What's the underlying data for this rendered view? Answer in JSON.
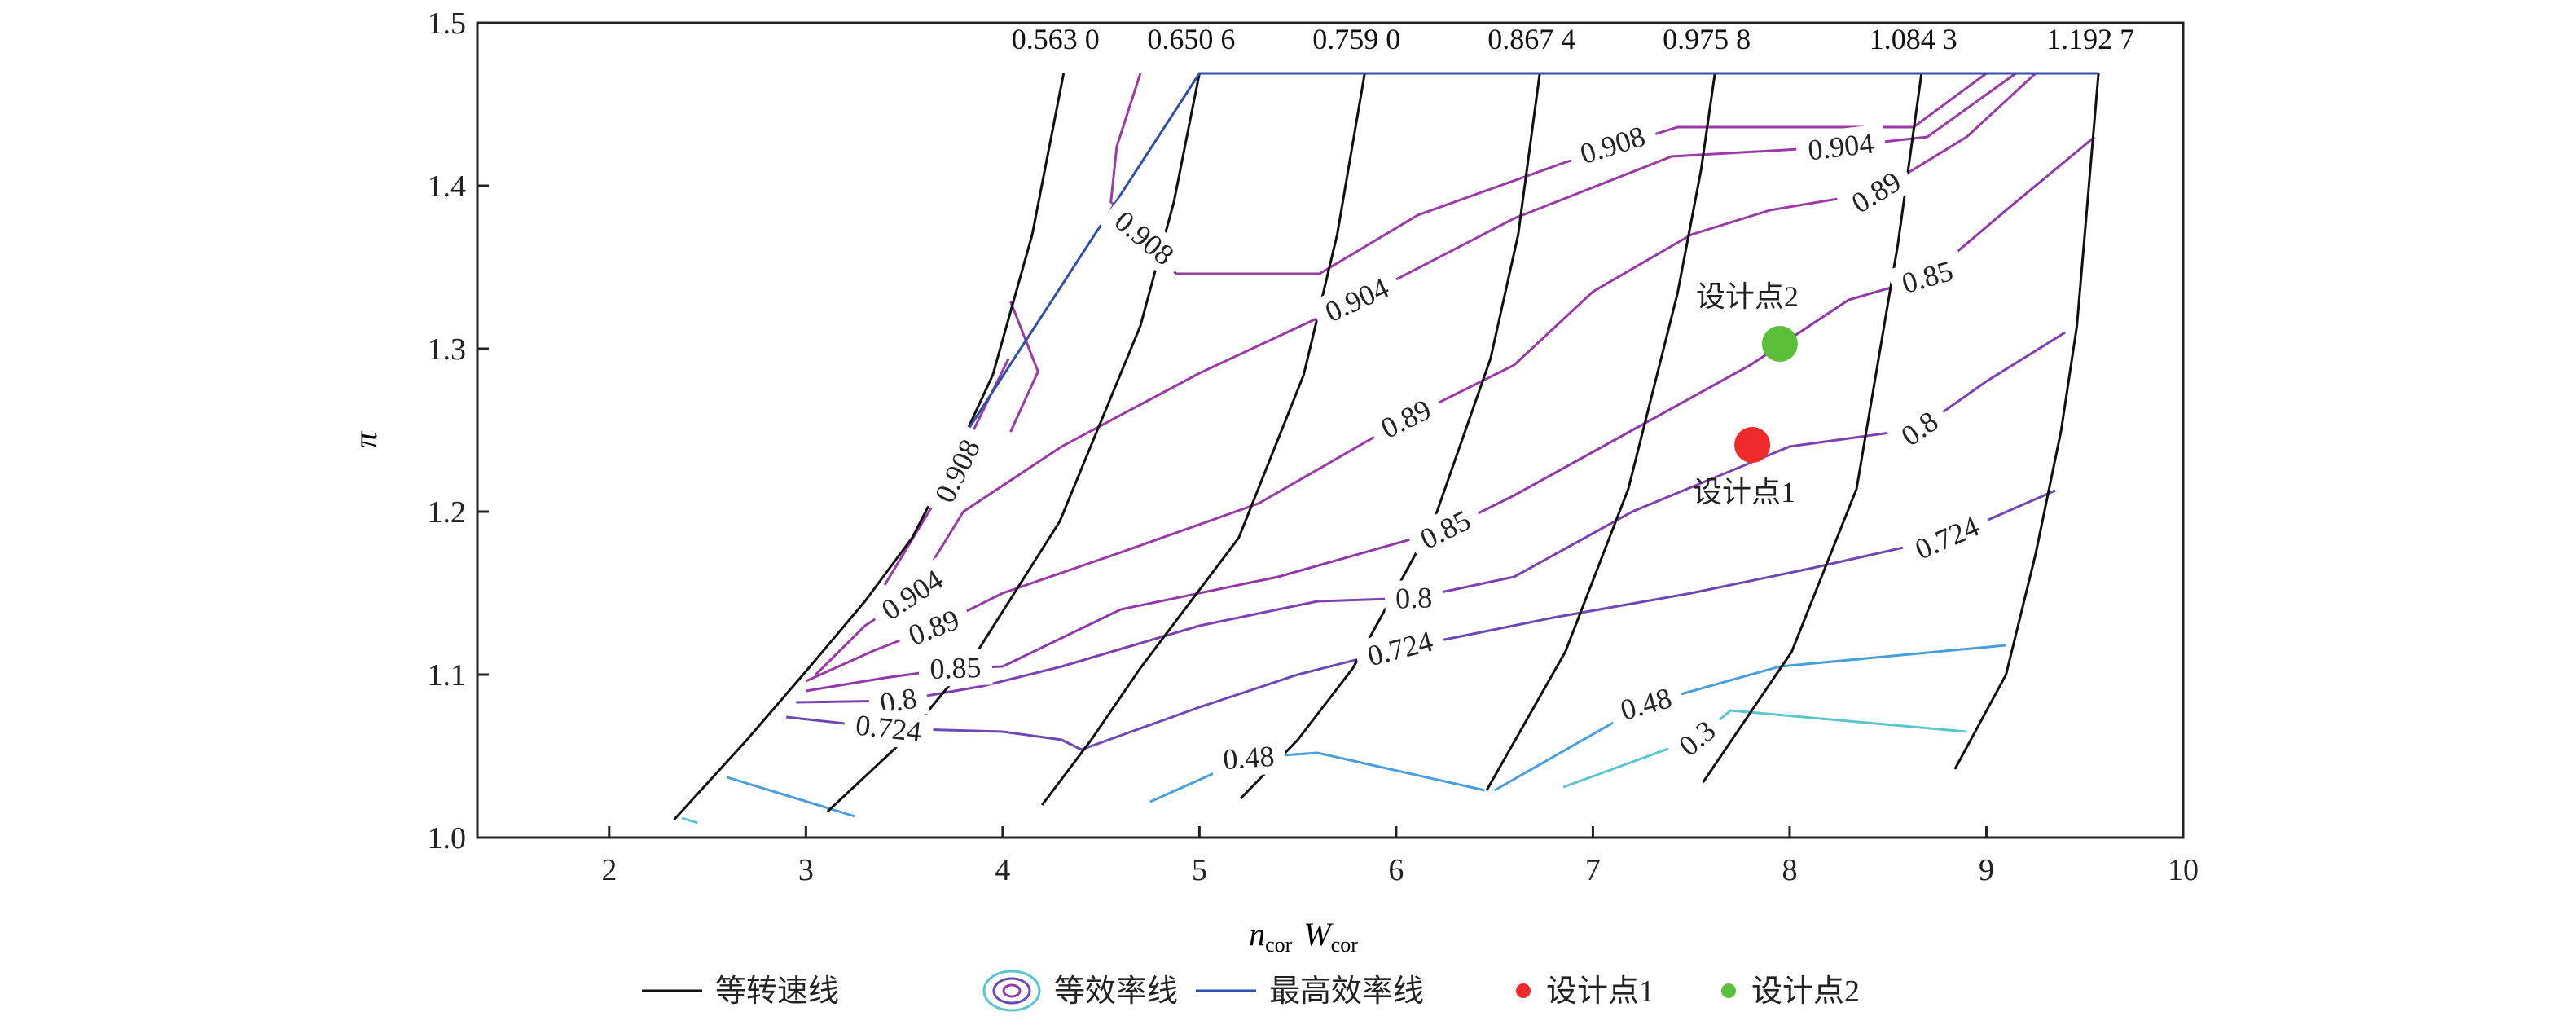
{
  "chart_data": {
    "type": "line",
    "title": "",
    "xlabel": "n_cor W_cor",
    "xlabel_main": [
      "n",
      "W"
    ],
    "xlabel_sub": "cor",
    "ylabel": "π",
    "xlim": [
      1.33,
      10
    ],
    "ylim": [
      1.0,
      1.5
    ],
    "xticks": [
      2,
      3,
      4,
      5,
      6,
      7,
      8,
      9,
      10
    ],
    "yticks": [
      "1.0",
      "1.1",
      "1.2",
      "1.3",
      "1.4",
      "1.5"
    ],
    "grid": false,
    "legend_placement": "bottom",
    "legend": [
      "等转速线",
      "等效率线",
      "最高效率线",
      "设计点1",
      "设计点2"
    ],
    "colors": {
      "speed": "#111111",
      "max_eff": "#2f4fa8",
      "design1": "#ee2a2a",
      "design2": "#5cbf3a"
    },
    "speed_lines": [
      {
        "label": "0.563 0",
        "points": [
          [
            2.33,
            1.011
          ],
          [
            2.7,
            1.06
          ],
          [
            3.0,
            1.102
          ],
          [
            3.3,
            1.145
          ],
          [
            3.54,
            1.184
          ],
          [
            3.8,
            1.245
          ],
          [
            3.95,
            1.284
          ],
          [
            4.15,
            1.37
          ],
          [
            4.31,
            1.469
          ]
        ]
      },
      {
        "label": "0.650 6",
        "points": [
          [
            3.11,
            1.016
          ],
          [
            3.5,
            1.06
          ],
          [
            3.87,
            1.114
          ],
          [
            4.29,
            1.194
          ],
          [
            4.7,
            1.314
          ],
          [
            4.87,
            1.39
          ],
          [
            5.0,
            1.469
          ]
        ]
      },
      {
        "label": "0.759 0",
        "points": [
          [
            4.2,
            1.02
          ],
          [
            4.45,
            1.06
          ],
          [
            4.7,
            1.104
          ],
          [
            5.2,
            1.184
          ],
          [
            5.53,
            1.284
          ],
          [
            5.7,
            1.37
          ],
          [
            5.84,
            1.469
          ]
        ]
      },
      {
        "label": "0.867 4",
        "points": [
          [
            5.21,
            1.024
          ],
          [
            5.5,
            1.06
          ],
          [
            5.78,
            1.104
          ],
          [
            6.19,
            1.194
          ],
          [
            6.48,
            1.294
          ],
          [
            6.62,
            1.37
          ],
          [
            6.73,
            1.469
          ]
        ]
      },
      {
        "label": "0.975 8",
        "points": [
          [
            6.46,
            1.029
          ],
          [
            6.86,
            1.114
          ],
          [
            7.18,
            1.214
          ],
          [
            7.43,
            1.334
          ],
          [
            7.55,
            1.41
          ],
          [
            7.62,
            1.469
          ]
        ]
      },
      {
        "label": "1.084 3",
        "points": [
          [
            7.56,
            1.034
          ],
          [
            8.01,
            1.114
          ],
          [
            8.34,
            1.214
          ],
          [
            8.55,
            1.364
          ],
          [
            8.67,
            1.469
          ]
        ]
      },
      {
        "label": "1.192 7",
        "points": [
          [
            8.84,
            1.042
          ],
          [
            9.1,
            1.1
          ],
          [
            9.25,
            1.174
          ],
          [
            9.38,
            1.25
          ],
          [
            9.46,
            1.314
          ],
          [
            9.57,
            1.469
          ]
        ]
      }
    ],
    "max_efficiency_line": [
      [
        3.79,
        1.244
      ],
      [
        5.0,
        1.469
      ],
      [
        9.57,
        1.469
      ]
    ],
    "efficiency_contours": [
      {
        "level": "0.908",
        "color": "#9a3aa6",
        "segments": [
          [
            [
              3.4,
              1.155
            ],
            [
              3.75,
              1.225
            ],
            [
              4.03,
              1.294
            ]
          ],
          [
            [
              4.04,
              1.329
            ],
            [
              4.18,
              1.286
            ],
            [
              4.04,
              1.249
            ]
          ],
          [
            [
              4.7,
              1.469
            ],
            [
              4.58,
              1.424
            ],
            [
              4.55,
              1.39
            ],
            [
              4.75,
              1.37
            ],
            [
              4.88,
              1.346
            ],
            [
              5.61,
              1.346
            ],
            [
              6.11,
              1.382
            ],
            [
              6.85,
              1.414
            ],
            [
              7.43,
              1.436
            ],
            [
              8.63,
              1.436
            ],
            [
              9.0,
              1.469
            ]
          ]
        ],
        "labels": [
          [
            3.77,
            1.225
          ],
          [
            4.72,
            1.368
          ],
          [
            7.1,
            1.425
          ]
        ]
      },
      {
        "level": "0.904",
        "color": "#9a3aa6",
        "segments": [
          [
            [
              3.05,
              1.1
            ],
            [
              3.3,
              1.13
            ],
            [
              3.54,
              1.149
            ],
            [
              3.8,
              1.2
            ],
            [
              4.3,
              1.24
            ],
            [
              5.0,
              1.285
            ],
            [
              5.8,
              1.33
            ],
            [
              6.6,
              1.38
            ],
            [
              7.4,
              1.418
            ],
            [
              8.26,
              1.424
            ],
            [
              8.7,
              1.43
            ],
            [
              9.15,
              1.469
            ]
          ]
        ],
        "labels": [
          [
            3.54,
            1.149
          ],
          [
            5.8,
            1.33
          ],
          [
            8.26,
            1.424
          ]
        ]
      },
      {
        "level": "0.89",
        "color": "#9a3aa6",
        "segments": [
          [
            [
              3.0,
              1.096
            ],
            [
              3.35,
              1.115
            ],
            [
              3.65,
              1.129
            ],
            [
              4.0,
              1.15
            ],
            [
              4.6,
              1.175
            ],
            [
              5.3,
              1.205
            ],
            [
              6.05,
              1.257
            ],
            [
              6.6,
              1.29
            ],
            [
              7.0,
              1.335
            ],
            [
              7.5,
              1.37
            ],
            [
              7.9,
              1.385
            ],
            [
              8.44,
              1.396
            ],
            [
              8.9,
              1.43
            ],
            [
              9.25,
              1.469
            ]
          ]
        ],
        "labels": [
          [
            3.65,
            1.129
          ],
          [
            6.05,
            1.257
          ],
          [
            8.44,
            1.396
          ]
        ]
      },
      {
        "level": "0.85",
        "color": "#9038a8",
        "segments": [
          [
            [
              3.0,
              1.09
            ],
            [
              3.4,
              1.098
            ],
            [
              3.76,
              1.104
            ],
            [
              4.0,
              1.105
            ],
            [
              4.6,
              1.14
            ],
            [
              5.4,
              1.16
            ],
            [
              6.25,
              1.189
            ],
            [
              6.6,
              1.21
            ],
            [
              7.2,
              1.25
            ],
            [
              7.8,
              1.29
            ],
            [
              8.3,
              1.33
            ],
            [
              8.7,
              1.344
            ],
            [
              9.1,
              1.385
            ],
            [
              9.55,
              1.43
            ]
          ]
        ],
        "labels": [
          [
            3.76,
            1.104
          ],
          [
            6.25,
            1.189
          ],
          [
            8.7,
            1.344
          ]
        ]
      },
      {
        "level": "0.8",
        "color": "#7e40ae",
        "segments": [
          [
            [
              2.95,
              1.083
            ],
            [
              3.47,
              1.084
            ],
            [
              3.9,
              1.093
            ],
            [
              4.3,
              1.105
            ],
            [
              5.0,
              1.13
            ],
            [
              5.6,
              1.145
            ],
            [
              6.09,
              1.147
            ],
            [
              6.6,
              1.16
            ],
            [
              7.2,
              1.2
            ],
            [
              8.0,
              1.24
            ],
            [
              8.66,
              1.251
            ],
            [
              9.0,
              1.28
            ],
            [
              9.4,
              1.31
            ]
          ]
        ],
        "labels": [
          [
            3.47,
            1.084
          ],
          [
            6.09,
            1.147
          ],
          [
            8.66,
            1.251
          ]
        ]
      },
      {
        "level": "0.724",
        "color": "#6c48b2",
        "segments": [
          [
            [
              2.9,
              1.074
            ],
            [
              3.42,
              1.067
            ],
            [
              4.0,
              1.065
            ],
            [
              4.3,
              1.06
            ],
            [
              4.4,
              1.054
            ],
            [
              5.0,
              1.08
            ],
            [
              5.5,
              1.1
            ],
            [
              6.02,
              1.116
            ],
            [
              6.8,
              1.135
            ],
            [
              7.5,
              1.15
            ],
            [
              8.1,
              1.165
            ],
            [
              8.8,
              1.184
            ],
            [
              9.35,
              1.213
            ]
          ]
        ],
        "labels": [
          [
            3.42,
            1.067
          ],
          [
            6.02,
            1.116
          ],
          [
            8.8,
            1.184
          ]
        ]
      },
      {
        "level": "0.48",
        "color": "#4a9ed8",
        "segments": [
          [
            [
              2.6,
              1.037
            ],
            [
              3.25,
              1.013
            ]
          ],
          [
            [
              4.75,
              1.022
            ],
            [
              5.25,
              1.049
            ],
            [
              5.6,
              1.052
            ],
            [
              6.45,
              1.029
            ]
          ],
          [
            [
              6.5,
              1.029
            ],
            [
              7.27,
              1.082
            ],
            [
              7.95,
              1.105
            ],
            [
              9.1,
              1.118
            ]
          ]
        ],
        "labels": [
          [
            5.25,
            1.049
          ],
          [
            7.27,
            1.082
          ]
        ]
      },
      {
        "level": "0.3",
        "color": "#5ac6cc",
        "segments": [
          [
            [
              6.85,
              1.031
            ],
            [
              7.53,
              1.061
            ],
            [
              7.7,
              1.078
            ],
            [
              8.9,
              1.065
            ]
          ],
          [
            [
              2.37,
              1.012
            ],
            [
              2.45,
              1.009
            ]
          ]
        ],
        "labels": [
          [
            7.53,
            1.061
          ]
        ]
      }
    ],
    "design_points": [
      {
        "label": "设计点1",
        "x": 7.81,
        "y": 1.241,
        "color": "#ee2a2a"
      },
      {
        "label": "设计点2",
        "x": 7.95,
        "y": 1.303,
        "color": "#5cbf3a"
      }
    ]
  }
}
